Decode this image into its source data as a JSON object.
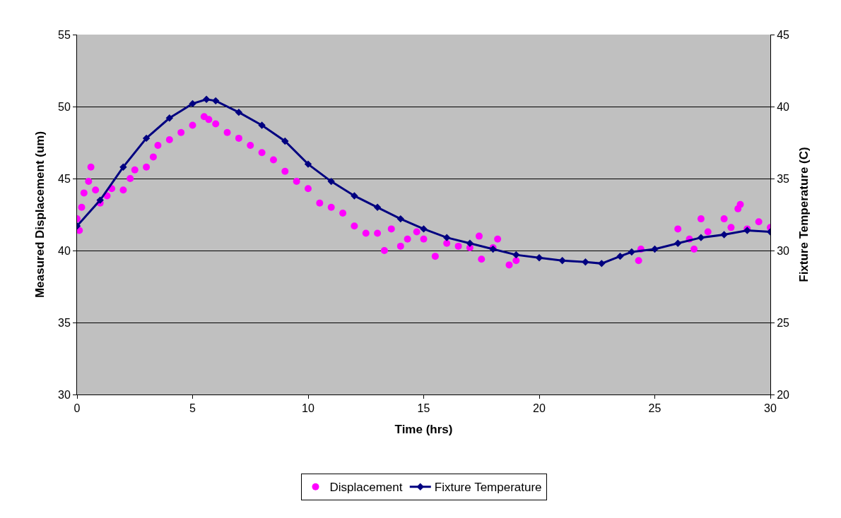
{
  "chart_data": {
    "type": "scatter",
    "xlabel": "Time (hrs)",
    "ylabel": "Measured Displacement (um)",
    "y2label": "Fixture Temperature (C)",
    "xlim": [
      0,
      30
    ],
    "xticks": [
      0,
      5,
      10,
      15,
      20,
      25,
      30
    ],
    "ylim": [
      30,
      55
    ],
    "yticks": [
      30,
      35,
      40,
      45,
      50,
      55
    ],
    "y2lim": [
      20,
      45
    ],
    "y2ticks": [
      20,
      25,
      30,
      35,
      40,
      45
    ],
    "grid": "y",
    "legend": "bottom",
    "series": [
      {
        "name": "Displacement",
        "marker": "circle",
        "color": "#ff00ff",
        "x": [
          0,
          0.1,
          0.2,
          0.3,
          0.5,
          0.6,
          0.8,
          1,
          1.3,
          1.5,
          2,
          2.3,
          2.5,
          3,
          3.3,
          3.5,
          4,
          4.5,
          5,
          5.5,
          5.7,
          6,
          6.5,
          7,
          7.5,
          8,
          8.5,
          9,
          9.5,
          10,
          10.5,
          11,
          11.5,
          12,
          12.5,
          13,
          13.3,
          13.6,
          14,
          14.3,
          14.7,
          15,
          15.5,
          16,
          16.5,
          17,
          17.4,
          17.5,
          18,
          18.2,
          18.7,
          19,
          24.3,
          24.4,
          26,
          26.5,
          26.7,
          27,
          27.3,
          28,
          28.3,
          28.6,
          28.7,
          29,
          29.5,
          30
        ],
        "values": [
          42.2,
          41.4,
          43,
          44,
          44.8,
          45.8,
          44.2,
          43.3,
          43.8,
          44.3,
          44.2,
          45,
          45.6,
          45.8,
          46.5,
          47.3,
          47.7,
          48.2,
          48.7,
          49.3,
          49.1,
          48.8,
          48.2,
          47.8,
          47.3,
          46.8,
          46.3,
          45.5,
          44.8,
          44.3,
          43.3,
          43,
          42.6,
          41.7,
          41.2,
          41.2,
          40,
          41.5,
          40.3,
          40.8,
          41.3,
          40.8,
          39.6,
          40.5,
          40.3,
          40.2,
          41,
          39.4,
          40.2,
          40.8,
          39,
          39.3,
          39.3,
          40.1,
          41.5,
          40.8,
          40.1,
          42.2,
          41.3,
          42.2,
          41.6,
          42.9,
          43.2,
          41.5,
          42,
          41.6
        ]
      },
      {
        "name": "Fixture Temperature",
        "type": "line",
        "marker": "diamond",
        "axis": "y2",
        "color": "#000080",
        "x": [
          0,
          1,
          2,
          3,
          4,
          5,
          5.6,
          6,
          7,
          8,
          9,
          10,
          11,
          12,
          13,
          14,
          15,
          16,
          17,
          18,
          19,
          20,
          21,
          22,
          22.7,
          23.5,
          24,
          25,
          26,
          27,
          28,
          29,
          30
        ],
        "values": [
          31.7,
          33.5,
          35.8,
          37.8,
          39.2,
          40.2,
          40.5,
          40.4,
          39.6,
          38.7,
          37.6,
          36,
          34.8,
          33.8,
          33,
          32.2,
          31.5,
          30.9,
          30.5,
          30.1,
          29.7,
          29.5,
          29.3,
          29.2,
          29.1,
          29.6,
          29.9,
          30.1,
          30.5,
          30.9,
          31.1,
          31.4,
          31.3
        ]
      }
    ]
  }
}
